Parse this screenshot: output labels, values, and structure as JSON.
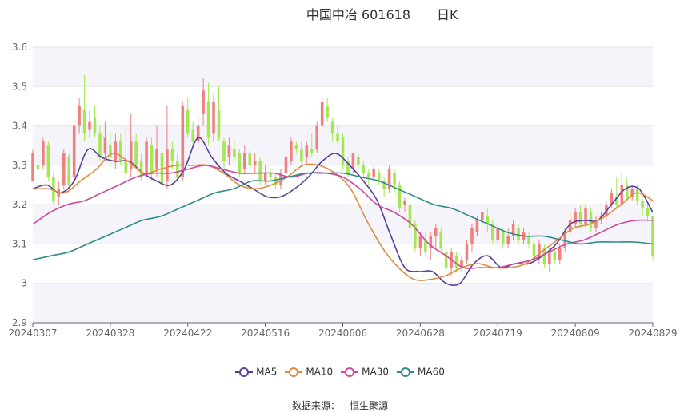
{
  "header": {
    "title": "中国中冶 601618",
    "period": "日K"
  },
  "source": {
    "label": "数据来源：",
    "value": "恒生聚源"
  },
  "colors": {
    "up": "#f07f7f",
    "down": "#a3e852",
    "grid": "#e6e6e6",
    "band": "#f4f4fa"
  },
  "chart_data": {
    "type": "candlestick",
    "ylim": [
      2.9,
      3.6
    ],
    "y_ticks": [
      "2.9",
      "3",
      "3.1",
      "3.2",
      "3.3",
      "3.4",
      "3.5",
      "3.6"
    ],
    "x_labels": [
      "20240307",
      "20240328",
      "20240422",
      "20240516",
      "20240606",
      "20240628",
      "20240719",
      "20240809",
      "20240829"
    ],
    "date_range": [
      "20240307",
      "20240829"
    ],
    "candles_ohlc": [
      [
        3.26,
        3.33,
        3.28,
        3.34
      ],
      [
        3.3,
        3.29,
        3.27,
        3.33
      ],
      [
        3.3,
        3.36,
        3.29,
        3.37
      ],
      [
        3.35,
        3.27,
        3.26,
        3.36
      ],
      [
        3.27,
        3.21,
        3.2,
        3.28
      ],
      [
        3.22,
        3.24,
        3.2,
        3.26
      ],
      [
        3.25,
        3.33,
        3.24,
        3.34
      ],
      [
        3.32,
        3.25,
        3.24,
        3.33
      ],
      [
        3.27,
        3.4,
        3.26,
        3.42
      ],
      [
        3.4,
        3.45,
        3.38,
        3.47
      ],
      [
        3.44,
        3.38,
        3.36,
        3.53
      ],
      [
        3.39,
        3.41,
        3.37,
        3.44
      ],
      [
        3.42,
        3.38,
        3.37,
        3.45
      ],
      [
        3.38,
        3.32,
        3.31,
        3.4
      ],
      [
        3.33,
        3.37,
        3.31,
        3.41
      ],
      [
        3.35,
        3.32,
        3.3,
        3.38
      ],
      [
        3.31,
        3.36,
        3.29,
        3.38
      ],
      [
        3.36,
        3.31,
        3.3,
        3.38
      ],
      [
        3.31,
        3.28,
        3.27,
        3.4
      ],
      [
        3.29,
        3.36,
        3.27,
        3.43
      ],
      [
        3.36,
        3.3,
        3.29,
        3.38
      ],
      [
        3.31,
        3.27,
        3.26,
        3.33
      ],
      [
        3.28,
        3.36,
        3.27,
        3.37
      ],
      [
        3.35,
        3.28,
        3.26,
        3.37
      ],
      [
        3.29,
        3.34,
        3.27,
        3.4
      ],
      [
        3.33,
        3.25,
        3.24,
        3.36
      ],
      [
        3.26,
        3.34,
        3.24,
        3.45
      ],
      [
        3.34,
        3.31,
        3.29,
        3.36
      ],
      [
        3.31,
        3.27,
        3.26,
        3.33
      ],
      [
        3.27,
        3.45,
        3.26,
        3.46
      ],
      [
        3.44,
        3.38,
        3.37,
        3.47
      ],
      [
        3.39,
        3.36,
        3.35,
        3.41
      ],
      [
        3.36,
        3.4,
        3.34,
        3.42
      ],
      [
        3.43,
        3.49,
        3.4,
        3.52
      ],
      [
        3.46,
        3.37,
        3.35,
        3.51
      ],
      [
        3.38,
        3.46,
        3.36,
        3.48
      ],
      [
        3.44,
        3.37,
        3.36,
        3.5
      ],
      [
        3.36,
        3.31,
        3.29,
        3.37
      ],
      [
        3.32,
        3.35,
        3.3,
        3.37
      ],
      [
        3.34,
        3.32,
        3.31,
        3.36
      ],
      [
        3.33,
        3.28,
        3.27,
        3.34
      ],
      [
        3.29,
        3.33,
        3.28,
        3.35
      ],
      [
        3.33,
        3.3,
        3.29,
        3.34
      ],
      [
        3.3,
        3.31,
        3.28,
        3.33
      ],
      [
        3.31,
        3.26,
        3.25,
        3.32
      ],
      [
        3.26,
        3.28,
        3.25,
        3.3
      ],
      [
        3.28,
        3.27,
        3.26,
        3.29
      ],
      [
        3.27,
        3.25,
        3.24,
        3.28
      ],
      [
        3.25,
        3.28,
        3.24,
        3.29
      ],
      [
        3.28,
        3.32,
        3.27,
        3.33
      ],
      [
        3.31,
        3.36,
        3.3,
        3.37
      ],
      [
        3.35,
        3.34,
        3.33,
        3.36
      ],
      [
        3.34,
        3.31,
        3.3,
        3.36
      ],
      [
        3.32,
        3.35,
        3.3,
        3.36
      ],
      [
        3.34,
        3.33,
        3.32,
        3.38
      ],
      [
        3.34,
        3.4,
        3.33,
        3.41
      ],
      [
        3.4,
        3.46,
        3.39,
        3.47
      ],
      [
        3.45,
        3.42,
        3.41,
        3.47
      ],
      [
        3.41,
        3.38,
        3.36,
        3.42
      ],
      [
        3.38,
        3.36,
        3.35,
        3.4
      ],
      [
        3.37,
        3.3,
        3.29,
        3.38
      ],
      [
        3.31,
        3.28,
        3.27,
        3.32
      ],
      [
        3.29,
        3.33,
        3.28,
        3.33
      ],
      [
        3.32,
        3.3,
        3.29,
        3.33
      ],
      [
        3.3,
        3.28,
        3.27,
        3.31
      ],
      [
        3.28,
        3.27,
        3.25,
        3.29
      ],
      [
        3.27,
        3.29,
        3.26,
        3.3
      ],
      [
        3.28,
        3.26,
        3.25,
        3.29
      ],
      [
        3.26,
        3.24,
        3.22,
        3.27
      ],
      [
        3.24,
        3.29,
        3.23,
        3.3
      ],
      [
        3.28,
        3.25,
        3.23,
        3.29
      ],
      [
        3.25,
        3.19,
        3.18,
        3.26
      ],
      [
        3.2,
        3.21,
        3.18,
        3.22
      ],
      [
        3.2,
        3.14,
        3.13,
        3.21
      ],
      [
        3.15,
        3.09,
        3.08,
        3.16
      ],
      [
        3.09,
        3.12,
        3.07,
        3.13
      ],
      [
        3.11,
        3.08,
        3.07,
        3.13
      ],
      [
        3.09,
        3.12,
        3.06,
        3.13
      ],
      [
        3.12,
        3.14,
        3.09,
        3.15
      ],
      [
        3.13,
        3.09,
        3.08,
        3.14
      ],
      [
        3.08,
        3.04,
        3.03,
        3.09
      ],
      [
        3.04,
        3.08,
        3.02,
        3.09
      ],
      [
        3.07,
        3.04,
        3.03,
        3.08
      ],
      [
        3.04,
        3.06,
        3.03,
        3.07
      ],
      [
        3.06,
        3.1,
        3.05,
        3.11
      ],
      [
        3.1,
        3.14,
        3.08,
        3.15
      ],
      [
        3.13,
        3.16,
        3.12,
        3.17
      ],
      [
        3.16,
        3.18,
        3.15,
        3.18
      ],
      [
        3.17,
        3.15,
        3.13,
        3.19
      ],
      [
        3.15,
        3.11,
        3.1,
        3.16
      ],
      [
        3.11,
        3.14,
        3.1,
        3.15
      ],
      [
        3.13,
        3.1,
        3.09,
        3.14
      ],
      [
        3.1,
        3.12,
        3.09,
        3.14
      ],
      [
        3.12,
        3.15,
        3.11,
        3.16
      ],
      [
        3.14,
        3.11,
        3.1,
        3.15
      ],
      [
        3.11,
        3.13,
        3.1,
        3.14
      ],
      [
        3.12,
        3.1,
        3.09,
        3.13
      ],
      [
        3.1,
        3.07,
        3.06,
        3.11
      ],
      [
        3.07,
        3.1,
        3.05,
        3.11
      ],
      [
        3.09,
        3.05,
        3.04,
        3.1
      ],
      [
        3.05,
        3.08,
        3.03,
        3.09
      ],
      [
        3.08,
        3.06,
        3.05,
        3.1
      ],
      [
        3.06,
        3.09,
        3.05,
        3.1
      ],
      [
        3.09,
        3.13,
        3.08,
        3.14
      ],
      [
        3.13,
        3.16,
        3.12,
        3.18
      ],
      [
        3.15,
        3.18,
        3.14,
        3.19
      ],
      [
        3.18,
        3.15,
        3.14,
        3.2
      ],
      [
        3.15,
        3.19,
        3.14,
        3.2
      ],
      [
        3.18,
        3.14,
        3.13,
        3.19
      ],
      [
        3.14,
        3.16,
        3.13,
        3.17
      ],
      [
        3.16,
        3.17,
        3.15,
        3.18
      ],
      [
        3.17,
        3.2,
        3.16,
        3.21
      ],
      [
        3.2,
        3.23,
        3.19,
        3.24
      ],
      [
        3.22,
        3.2,
        3.19,
        3.27
      ],
      [
        3.2,
        3.25,
        3.19,
        3.28
      ],
      [
        3.25,
        3.22,
        3.21,
        3.27
      ],
      [
        3.22,
        3.24,
        3.21,
        3.25
      ],
      [
        3.24,
        3.21,
        3.2,
        3.25
      ],
      [
        3.21,
        3.19,
        3.17,
        3.22
      ],
      [
        3.19,
        3.17,
        3.16,
        3.21
      ],
      [
        3.17,
        3.07,
        3.06,
        3.16
      ]
    ],
    "ma_series": [
      {
        "name": "MA5",
        "color": "#5b3f9a",
        "values": [
          3.24,
          3.25,
          3.23,
          3.26,
          3.34,
          3.32,
          3.31,
          3.31,
          3.28,
          3.26,
          3.25,
          3.29,
          3.37,
          3.32,
          3.28,
          3.26,
          3.24,
          3.22,
          3.22,
          3.24,
          3.27,
          3.31,
          3.33,
          3.3,
          3.26,
          3.21,
          3.12,
          3.04,
          3.03,
          3.03,
          3.0,
          3.0,
          3.05,
          3.07,
          3.04,
          3.05,
          3.05,
          3.07,
          3.1,
          3.15,
          3.16,
          3.16,
          3.2,
          3.24,
          3.24,
          3.18
        ]
      },
      {
        "name": "MA10",
        "color": "#e08b3c",
        "values": [
          3.24,
          3.24,
          3.23,
          3.26,
          3.29,
          3.33,
          3.31,
          3.28,
          3.29,
          3.3,
          3.3,
          3.3,
          3.28,
          3.25,
          3.24,
          3.25,
          3.27,
          3.3,
          3.3,
          3.28,
          3.24,
          3.16,
          3.09,
          3.04,
          3.01,
          3.01,
          3.02,
          3.04,
          3.05,
          3.04,
          3.04,
          3.05,
          3.08,
          3.11,
          3.14,
          3.15,
          3.17,
          3.2,
          3.23,
          3.21
        ]
      },
      {
        "name": "MA30",
        "color": "#cc4a9e",
        "values": [
          3.15,
          3.18,
          3.2,
          3.21,
          3.23,
          3.25,
          3.27,
          3.28,
          3.28,
          3.29,
          3.3,
          3.29,
          3.28,
          3.28,
          3.28,
          3.27,
          3.28,
          3.28,
          3.27,
          3.24,
          3.2,
          3.18,
          3.15,
          3.1,
          3.07,
          3.04,
          3.04,
          3.04,
          3.05,
          3.06,
          3.08,
          3.1,
          3.11,
          3.13,
          3.15,
          3.16,
          3.16
        ]
      },
      {
        "name": "MA60",
        "color": "#2e8b8b",
        "values": [
          3.06,
          3.07,
          3.08,
          3.1,
          3.12,
          3.14,
          3.16,
          3.17,
          3.19,
          3.21,
          3.23,
          3.24,
          3.26,
          3.26,
          3.27,
          3.28,
          3.28,
          3.28,
          3.27,
          3.26,
          3.24,
          3.22,
          3.2,
          3.19,
          3.17,
          3.15,
          3.13,
          3.12,
          3.12,
          3.11,
          3.1,
          3.105,
          3.105,
          3.105,
          3.1
        ]
      }
    ]
  }
}
